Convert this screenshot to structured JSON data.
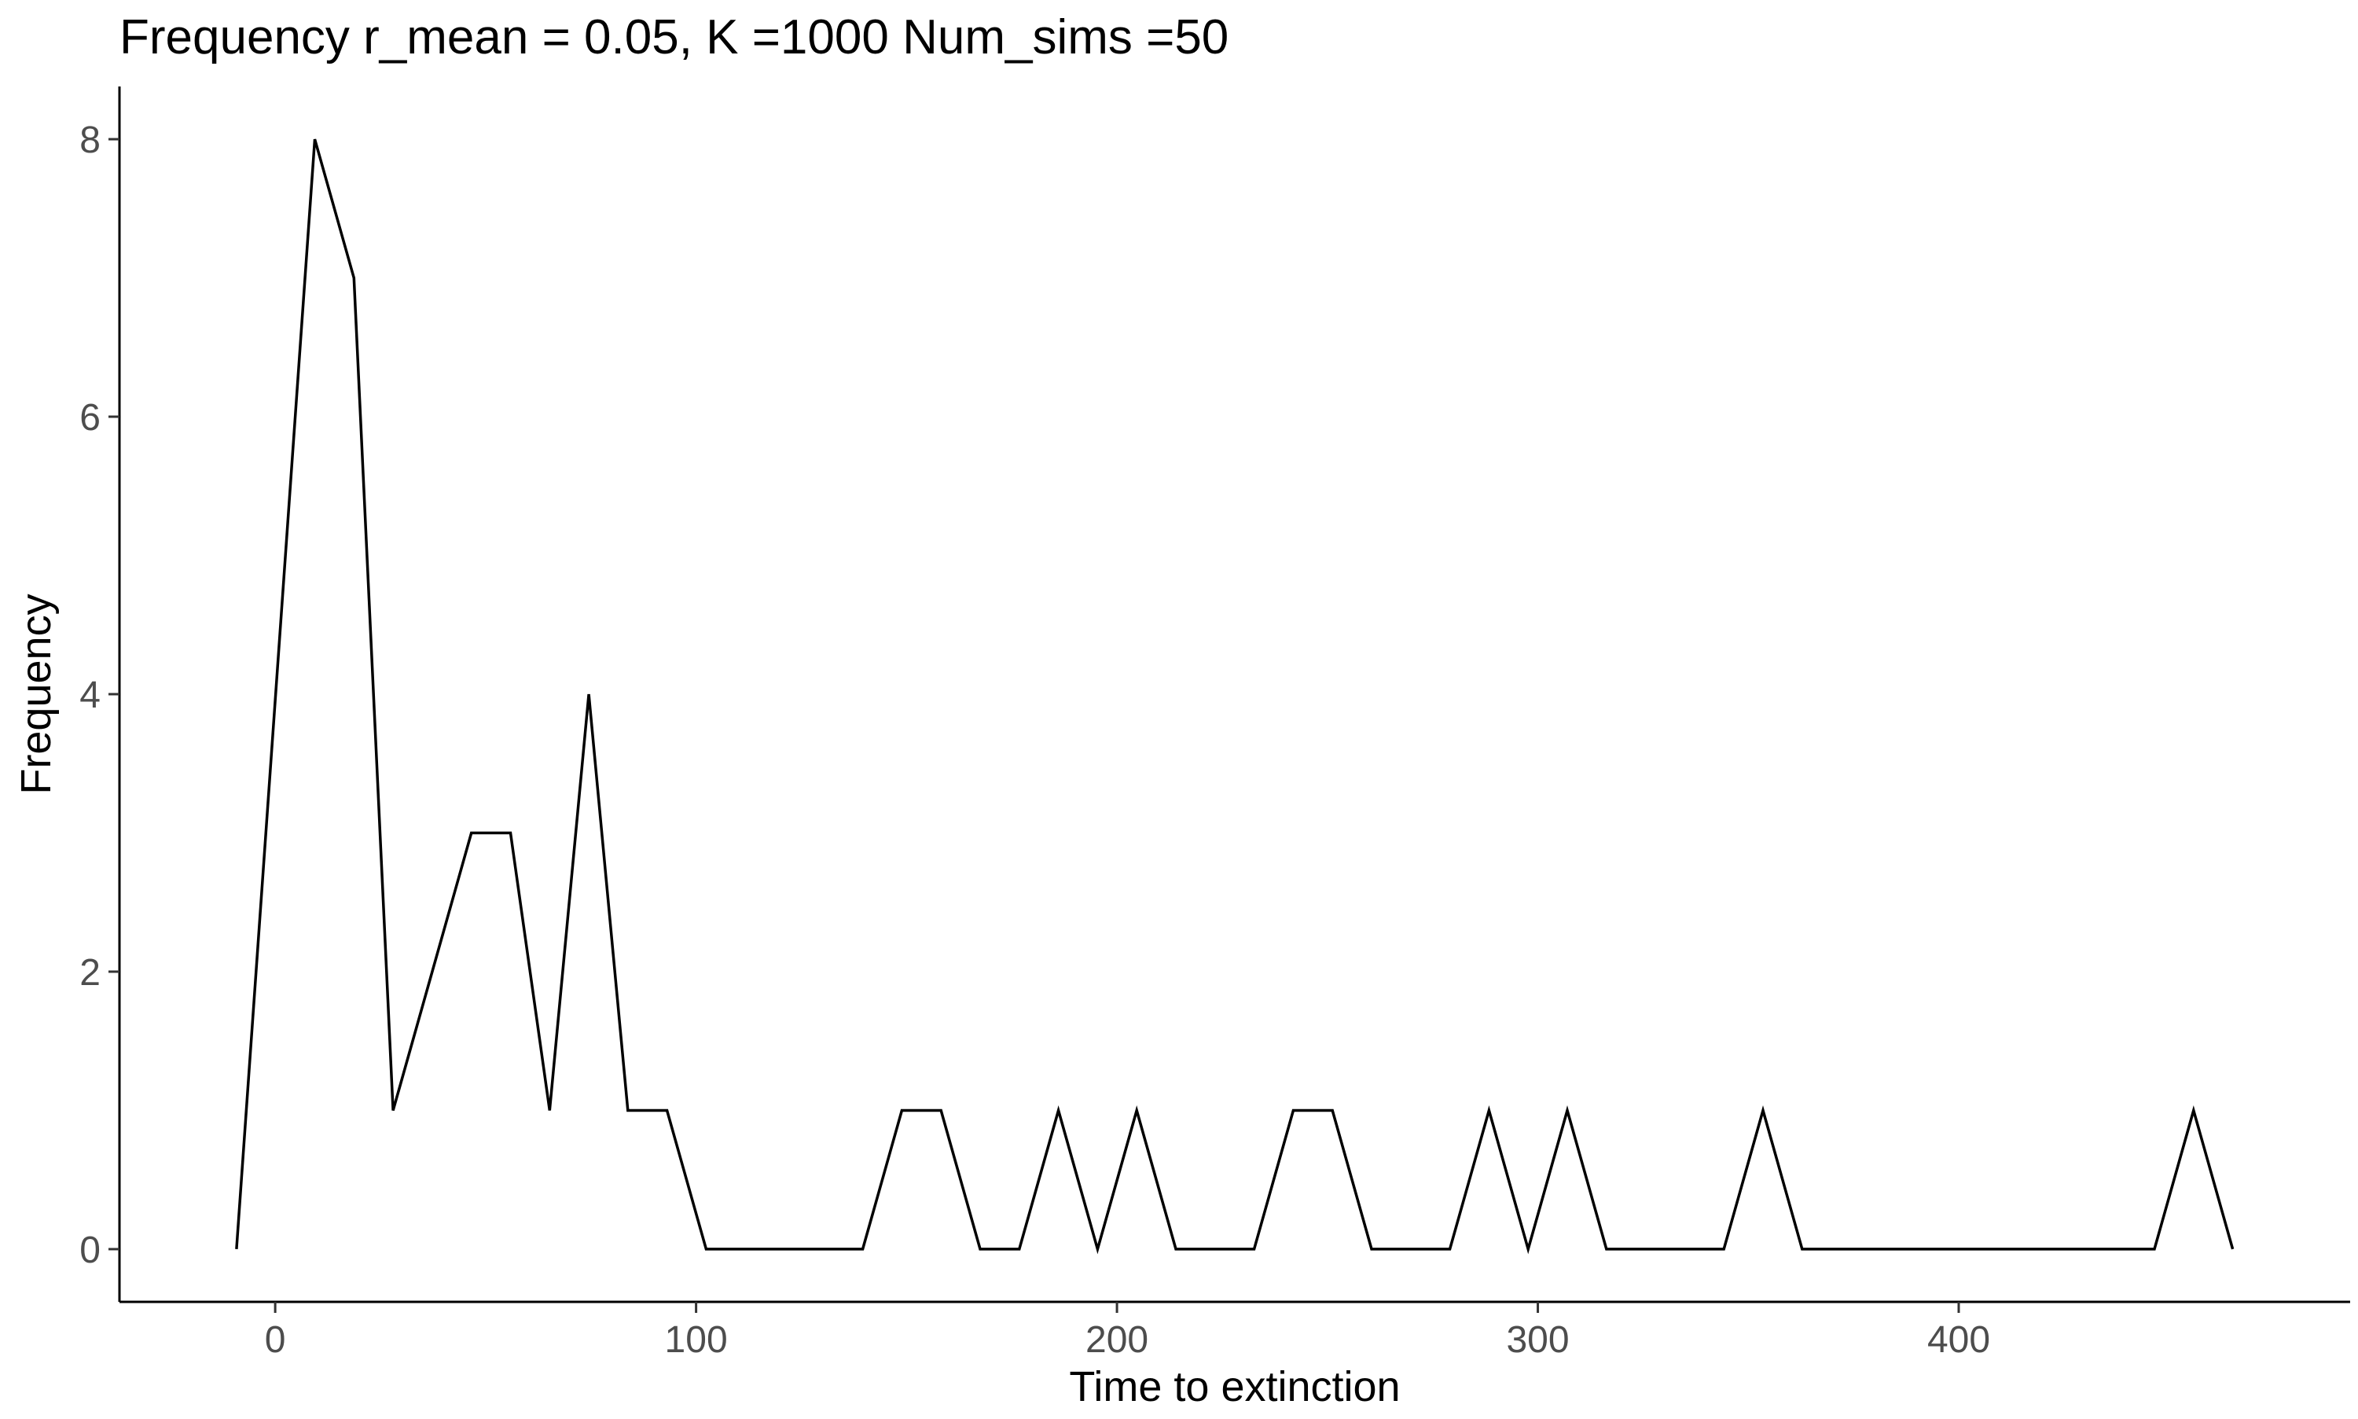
{
  "chart_data": {
    "type": "line",
    "title": "Frequency r_mean = 0.05, K =1000 Num_sims =50",
    "xlabel": "Time to extinction",
    "ylabel": "Frequency",
    "xlim": [
      -37,
      493
    ],
    "ylim": [
      -0.38,
      8.38
    ],
    "x_ticks": [
      0,
      100,
      200,
      300,
      400
    ],
    "y_ticks": [
      0,
      2,
      4,
      6,
      8
    ],
    "grid": false,
    "legend": "none",
    "line_color": "#000000",
    "series": [
      {
        "x": [
          -9.2,
          0.1,
          9.4,
          18.7,
          28.0,
          37.3,
          46.6,
          55.9,
          65.2,
          74.5,
          83.8,
          93.1,
          102.4,
          111.7,
          121.0,
          130.3,
          139.6,
          148.9,
          158.2,
          167.5,
          176.8,
          186.1,
          195.4,
          204.7,
          214.0,
          223.3,
          232.6,
          241.9,
          251.2,
          260.5,
          269.8,
          279.1,
          288.4,
          297.7,
          307.0,
          316.3,
          325.6,
          334.9,
          344.2,
          353.5,
          362.8,
          372.1,
          381.4,
          390.7,
          400.0,
          409.3,
          418.6,
          427.9,
          437.2,
          446.5,
          455.8,
          465.1
        ],
        "y": [
          0,
          4,
          8,
          7,
          1,
          2,
          3,
          3,
          1,
          4,
          1,
          1,
          0,
          0,
          0,
          0,
          0,
          1,
          1,
          0,
          0,
          1,
          0,
          1,
          0,
          0,
          0,
          1,
          1,
          0,
          0,
          0,
          1,
          0,
          1,
          0,
          0,
          0,
          0,
          1,
          0,
          0,
          0,
          0,
          0,
          0,
          0,
          0,
          0,
          0,
          1,
          0
        ]
      }
    ]
  }
}
